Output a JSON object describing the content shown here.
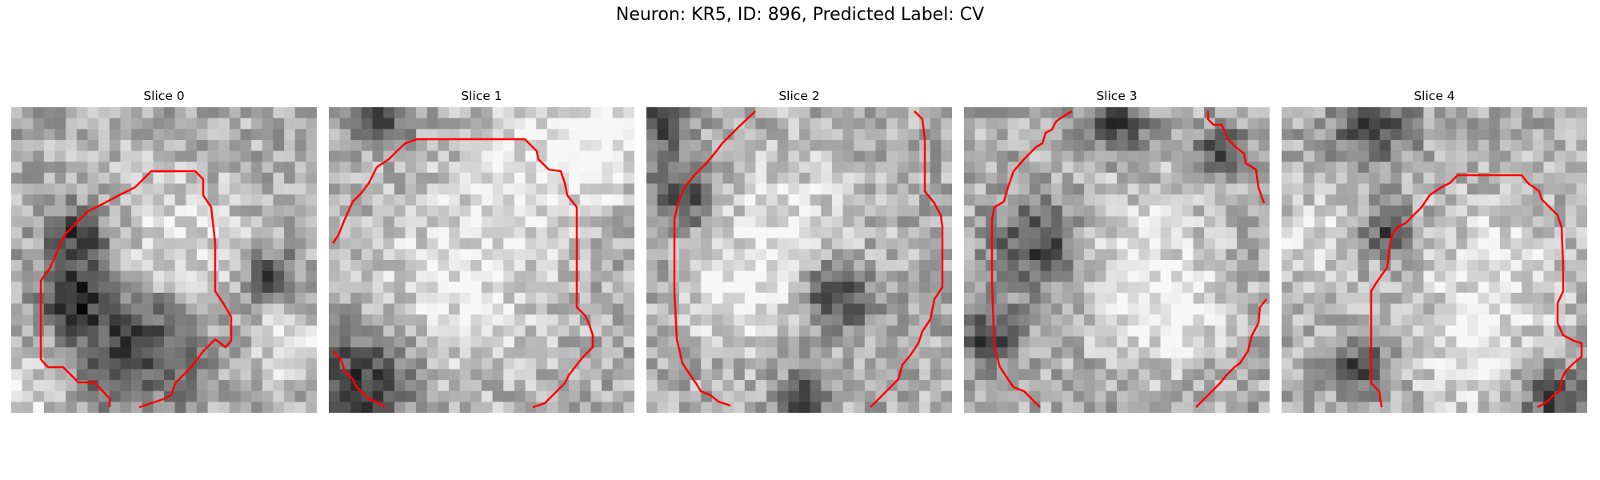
{
  "figure": {
    "title": "Neuron: KR5, ID: 896, Predicted Label: CV"
  },
  "panels": [
    {
      "title": "Slice 0",
      "seed": 11,
      "dark": [
        [
          0.22,
          0.42,
          0.1
        ],
        [
          0.2,
          0.62,
          0.1
        ],
        [
          0.4,
          0.78,
          0.2
        ],
        [
          0.85,
          0.55,
          0.08
        ]
      ],
      "bright": [
        [
          0.55,
          0.45,
          0.22
        ],
        [
          0.92,
          0.78,
          0.12
        ],
        [
          0.05,
          0.92,
          0.12
        ]
      ]
    },
    {
      "title": "Slice 1",
      "seed": 23,
      "dark": [
        [
          0.18,
          0.06,
          0.08
        ],
        [
          0.1,
          0.9,
          0.18
        ]
      ],
      "bright": [
        [
          0.42,
          0.58,
          0.3
        ],
        [
          0.7,
          0.2,
          0.25
        ],
        [
          0.9,
          0.1,
          0.15
        ]
      ]
    },
    {
      "title": "Slice 2",
      "seed": 37,
      "dark": [
        [
          0.12,
          0.3,
          0.1
        ],
        [
          0.62,
          0.62,
          0.12
        ],
        [
          0.5,
          0.95,
          0.08
        ],
        [
          0.05,
          0.05,
          0.1
        ]
      ],
      "bright": [
        [
          0.45,
          0.4,
          0.25
        ],
        [
          0.3,
          0.65,
          0.15
        ]
      ]
    },
    {
      "title": "Slice 3",
      "seed": 53,
      "dark": [
        [
          0.08,
          0.75,
          0.1
        ],
        [
          0.25,
          0.45,
          0.15
        ],
        [
          0.5,
          0.05,
          0.1
        ],
        [
          0.85,
          0.15,
          0.08
        ]
      ],
      "bright": [
        [
          0.55,
          0.5,
          0.25
        ],
        [
          0.7,
          0.7,
          0.15
        ]
      ]
    },
    {
      "title": "Slice 4",
      "seed": 71,
      "dark": [
        [
          0.35,
          0.4,
          0.08
        ],
        [
          0.27,
          0.85,
          0.08
        ],
        [
          0.3,
          0.05,
          0.12
        ],
        [
          0.9,
          0.95,
          0.1
        ]
      ],
      "bright": [
        [
          0.1,
          0.45,
          0.14
        ],
        [
          0.7,
          0.55,
          0.25
        ],
        [
          0.6,
          0.85,
          0.15
        ]
      ]
    }
  ]
}
